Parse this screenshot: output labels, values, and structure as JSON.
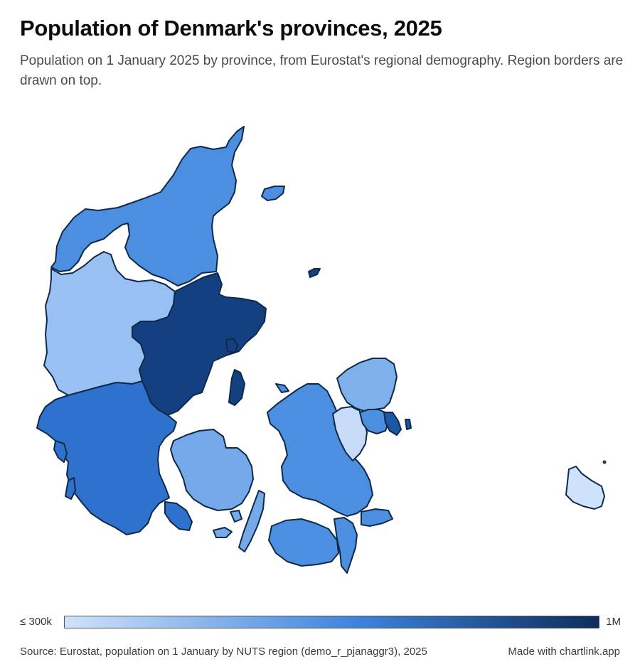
{
  "header": {
    "title": "Population of Denmark's provinces, 2025",
    "subtitle": "Population on 1 January 2025 by province, from Eurostat's regional demography. Region borders are drawn on top."
  },
  "legend": {
    "min_label": "≤ 300k",
    "max_label": "1M",
    "color_low": "#cfe2fb",
    "color_mid": "#3d83dd",
    "color_high": "#0d2e5c"
  },
  "footer": {
    "source": "Source: Eurostat, population on 1 January by NUTS region (demo_r_pjanaggr3), 2025",
    "credit": "Made with chartlink.app"
  },
  "regions": [
    {
      "id": "nordjylland",
      "fill": "#4c8fe0"
    },
    {
      "id": "vestjylland",
      "fill": "#99c0f2"
    },
    {
      "id": "oestjylland",
      "fill": "#143f80"
    },
    {
      "id": "sydjylland",
      "fill": "#2f72cd"
    },
    {
      "id": "fyn",
      "fill": "#75a9ea"
    },
    {
      "id": "vest-og-sydsjaelland",
      "fill": "#4c8fe0"
    },
    {
      "id": "oestsjaelland",
      "fill": "#c7dcf8"
    },
    {
      "id": "nordsjaelland",
      "fill": "#7eb0ec"
    },
    {
      "id": "koebenhavns-omegn",
      "fill": "#4c8fe0"
    },
    {
      "id": "byen-koebenhavn",
      "fill": "#1e56a6"
    },
    {
      "id": "bornholm",
      "fill": "#cfe2fb"
    }
  ]
}
